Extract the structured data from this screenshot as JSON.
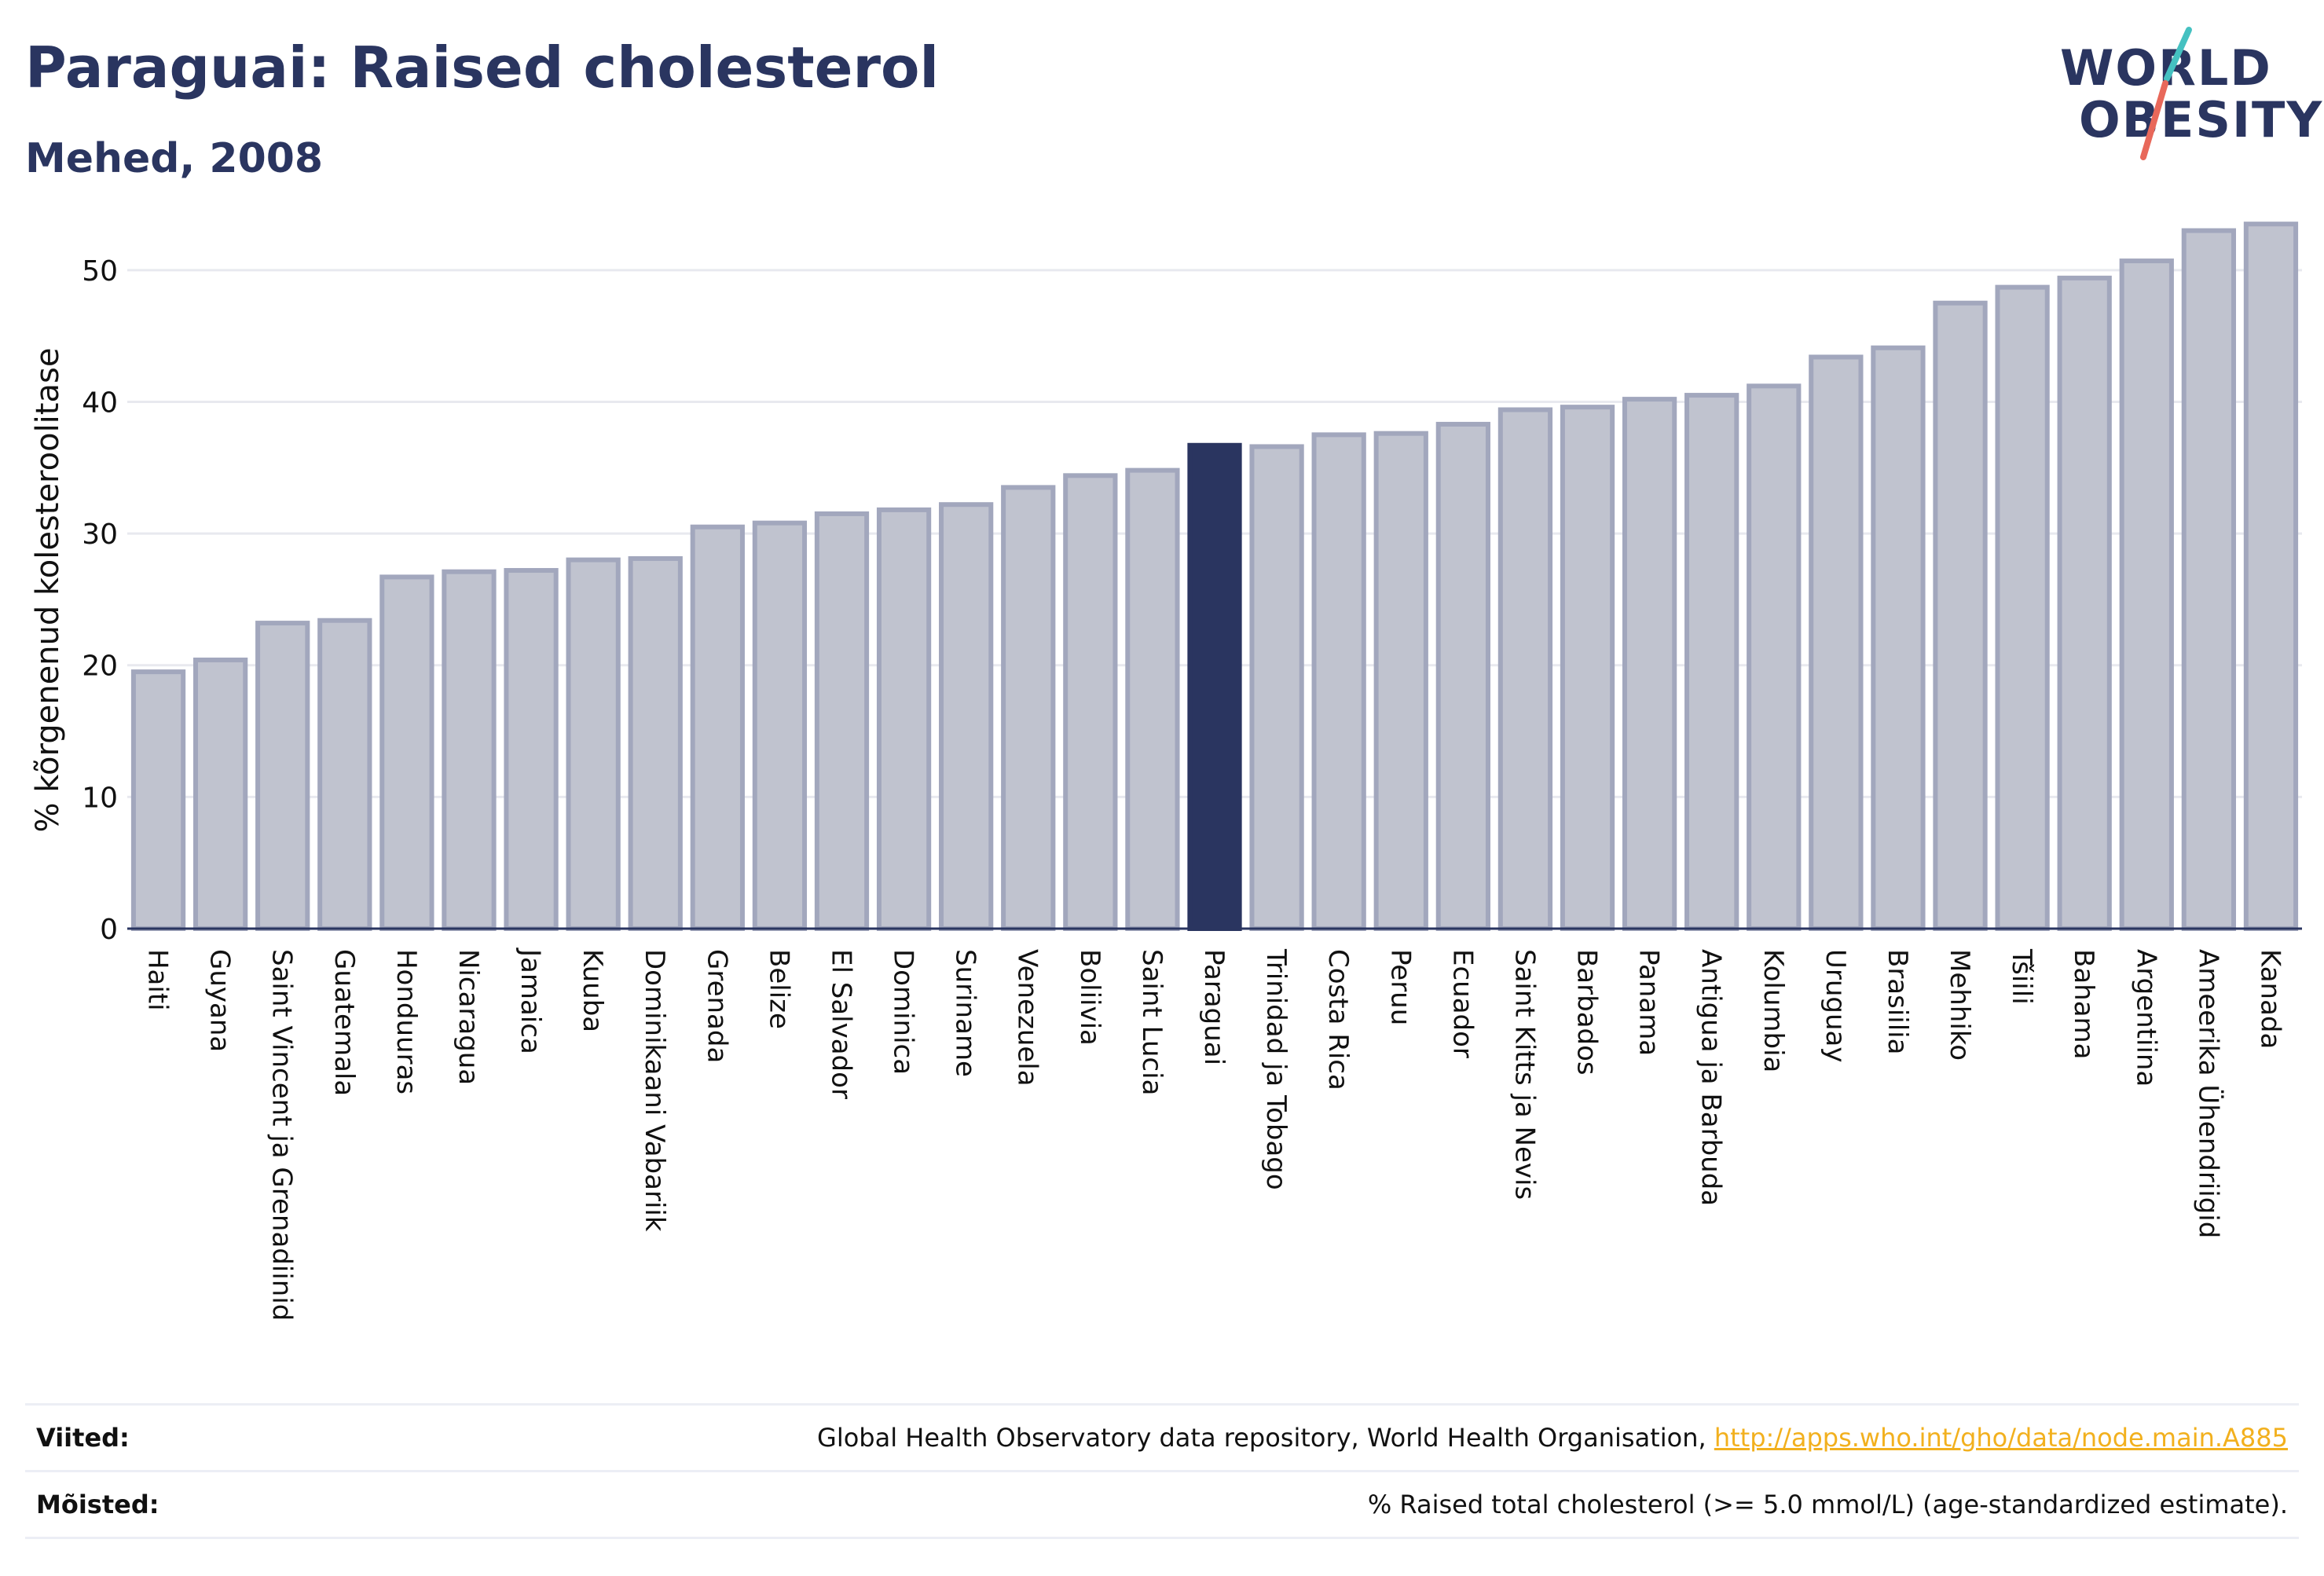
{
  "header": {
    "title": "Paraguai: Raised cholesterol",
    "subtitle": "Mehed, 2008"
  },
  "logo": {
    "line1": "WORLD",
    "line2": "OBESITY",
    "accent_colors": [
      "#45c1c1",
      "#e8685a"
    ]
  },
  "colors": {
    "bar_fill": "#c0c3cf",
    "bar_stroke": "#a2a7bd",
    "highlight": "#2a3560",
    "grid": "#e8e9ef",
    "axis": "#2a3560",
    "text": "#111111"
  },
  "chart_data": {
    "type": "bar",
    "title": "Paraguai: Raised cholesterol",
    "subtitle": "Mehed, 2008",
    "ylabel": "% kõrgenenud kolesteroolitase",
    "xlabel": "",
    "ylim": [
      0,
      55
    ],
    "yticks": [
      0,
      10,
      20,
      30,
      40,
      50
    ],
    "grid": true,
    "highlight_category": "Paraguai",
    "categories": [
      "Haiti",
      "Guyana",
      "Saint Vincent ja Grenadiinid",
      "Guatemala",
      "Honduuras",
      "Nicaragua",
      "Jamaica",
      "Kuuba",
      "Dominikaani Vabariik",
      "Grenada",
      "Belize",
      "El Salvador",
      "Dominica",
      "Suriname",
      "Venezuela",
      "Boliivia",
      "Saint Lucia",
      "Paraguai",
      "Trinidad ja Tobago",
      "Costa Rica",
      "Peruu",
      "Ecuador",
      "Saint Kitts ja Nevis",
      "Barbados",
      "Panama",
      "Antigua ja Barbuda",
      "Kolumbia",
      "Uruguay",
      "Brasiilia",
      "Mehhiko",
      "Tšiili",
      "Bahama",
      "Argentiina",
      "Ameerika Ühendriigid",
      "Kanada"
    ],
    "values": [
      19.5,
      20.4,
      23.2,
      23.4,
      26.7,
      27.1,
      27.2,
      28.0,
      28.1,
      30.5,
      30.8,
      31.5,
      31.8,
      32.2,
      33.5,
      34.4,
      34.8,
      36.7,
      36.6,
      37.5,
      37.6,
      38.3,
      39.4,
      39.6,
      40.2,
      40.5,
      41.2,
      43.4,
      44.1,
      47.5,
      48.7,
      49.4,
      50.7,
      53.0,
      53.5
    ]
  },
  "footer": {
    "references_label": "Viited:",
    "references_text": "Global Health Observatory data repository, World Health Organisation, ",
    "references_link": "http://apps.who.int/gho/data/node.main.A885",
    "definitions_label": "Mõisted:",
    "definitions_text": "% Raised total cholesterol (>= 5.0 mmol/L) (age-standardized estimate)."
  }
}
